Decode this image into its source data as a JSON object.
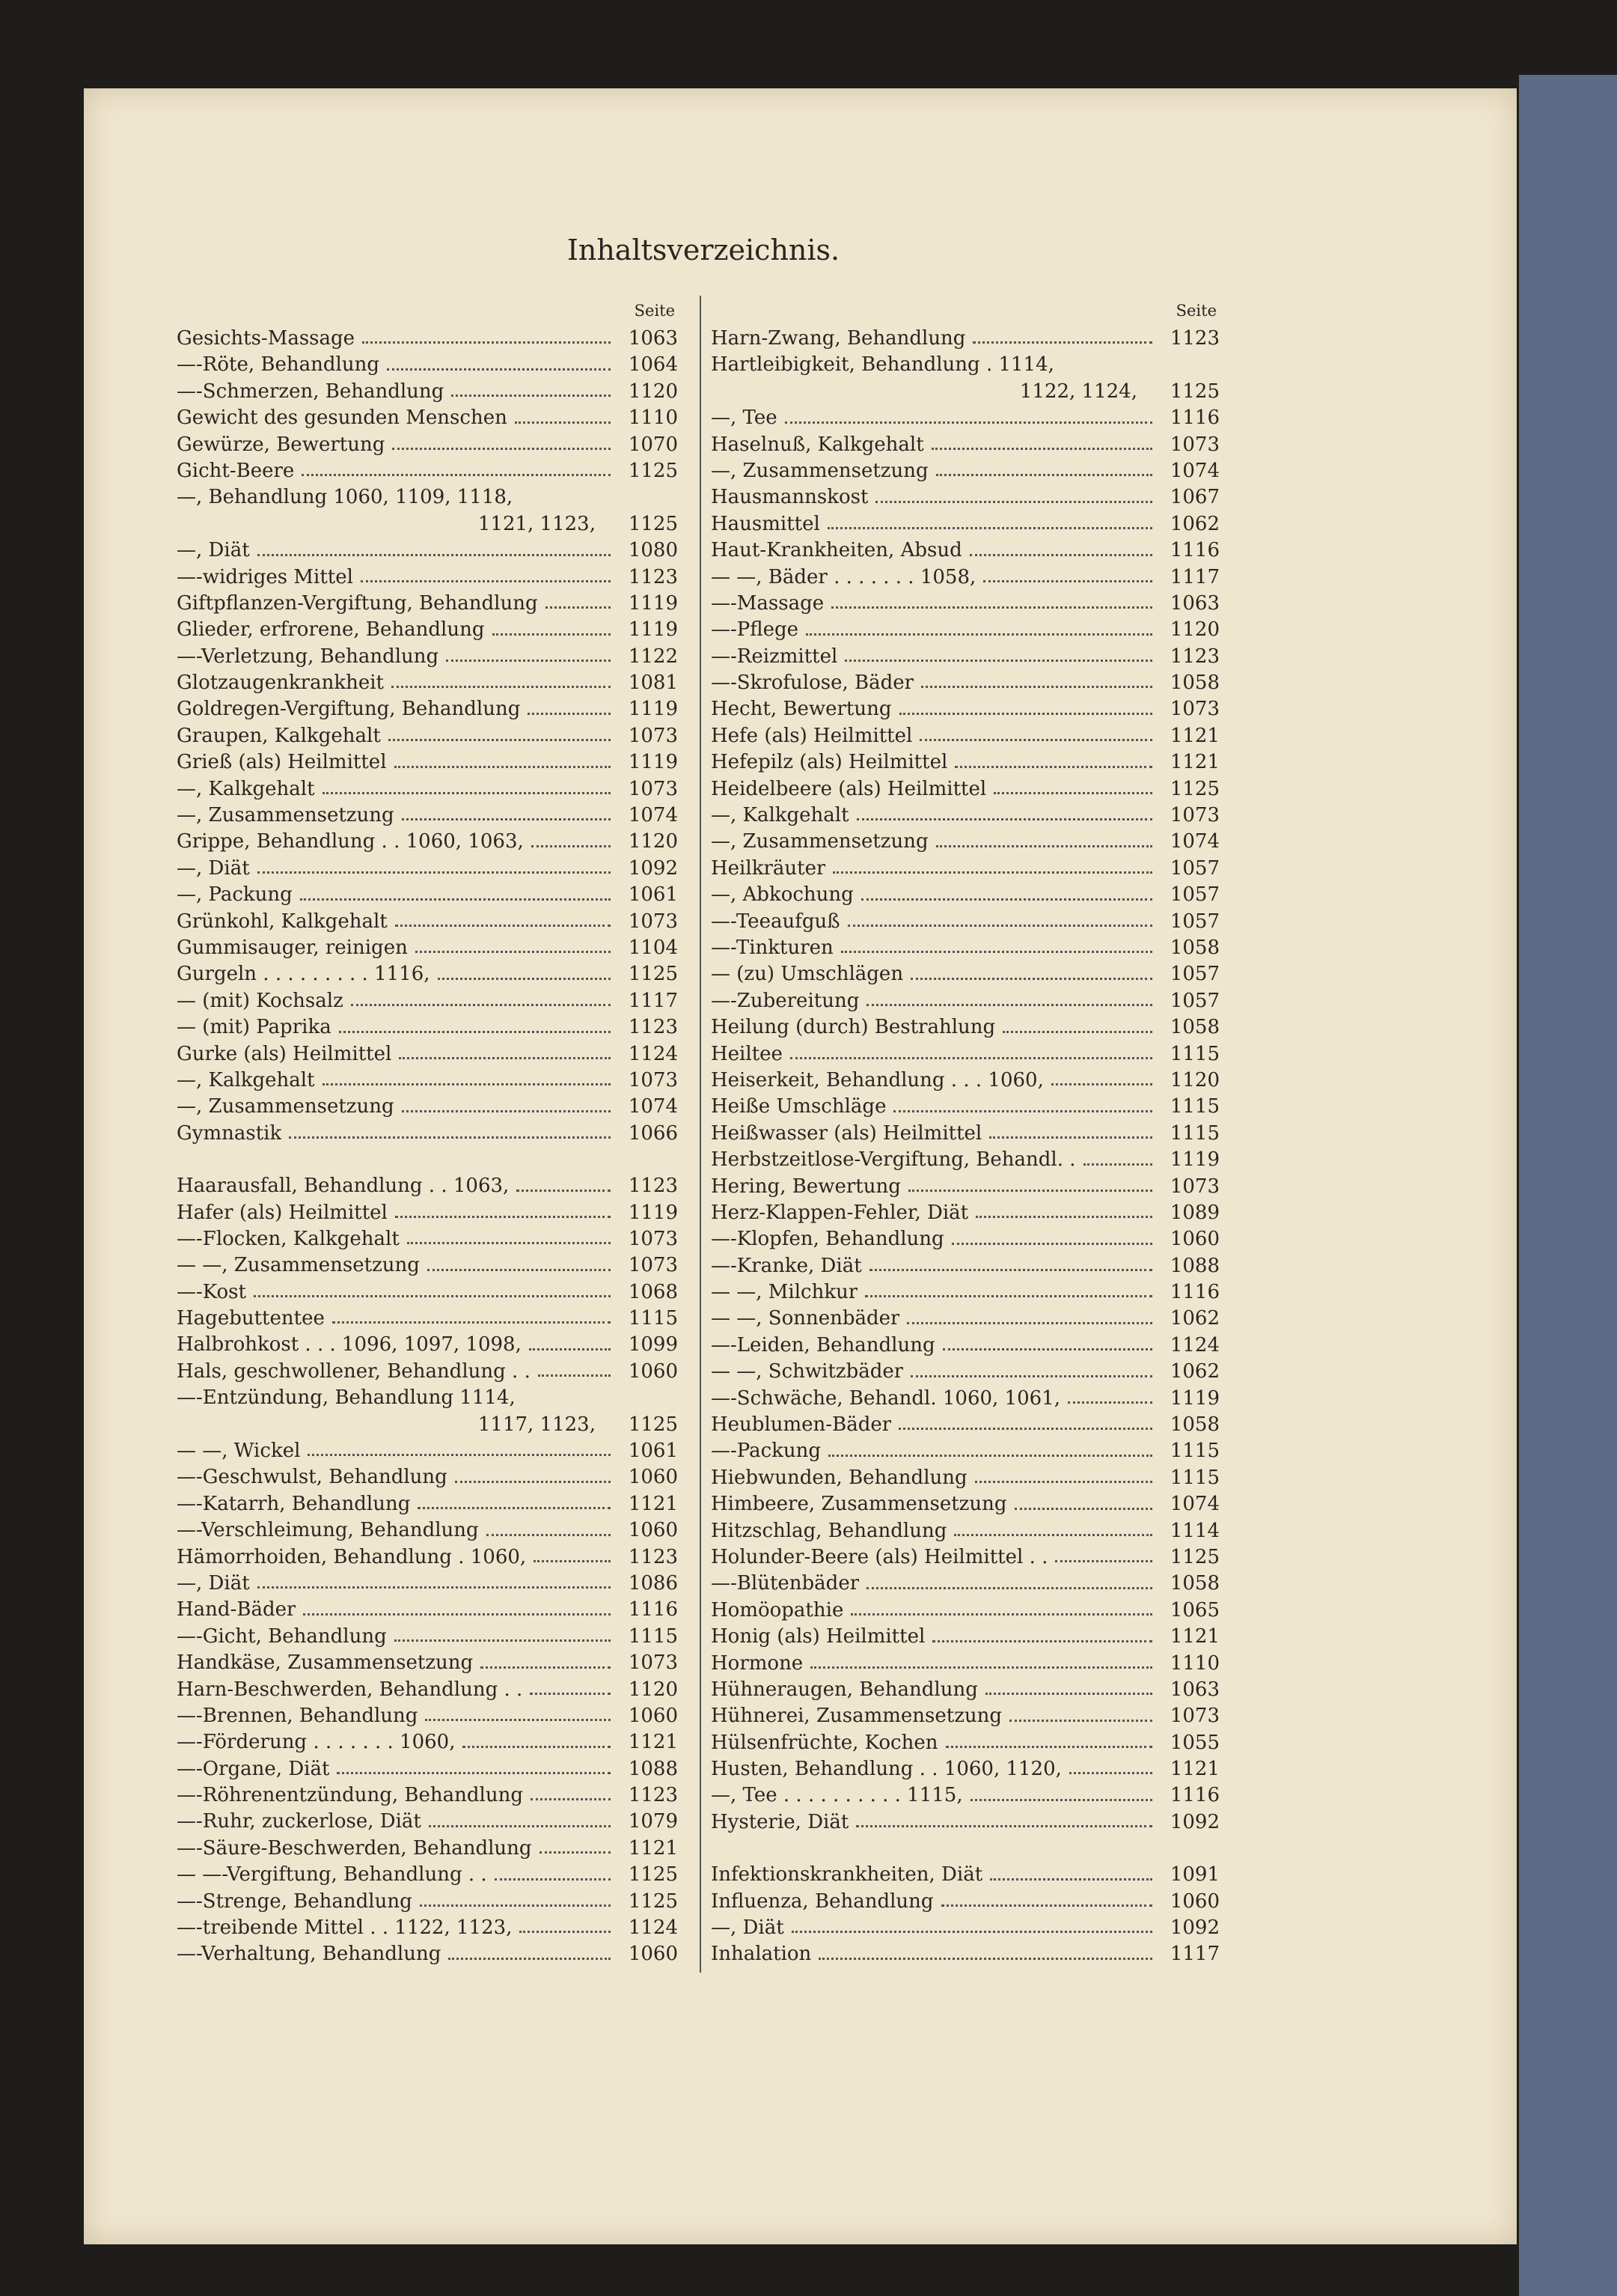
{
  "header": {
    "title": "Inhaltsverzeichnis."
  },
  "columns": [
    {
      "page_label": "Seite",
      "groups": [
        {
          "entries": [
            {
              "text": "Gesichts-Massage",
              "page": "1063"
            },
            {
              "text": "—-Röte, Behandlung",
              "page": "1064"
            },
            {
              "text": "—-Schmerzen, Behandlung",
              "page": "1120"
            },
            {
              "text": "Gewicht des gesunden Menschen",
              "page": "1110"
            },
            {
              "text": "Gewürze, Bewertung",
              "page": "1070"
            },
            {
              "text": "Gicht-Beere",
              "page": "1125"
            },
            {
              "text": "—, Behandlung 1060, 1109, 1118,"
            },
            {
              "text": "1121, 1123,",
              "page": "1125"
            },
            {
              "text": "—, Diät",
              "page": "1080"
            },
            {
              "text": "—-widriges Mittel",
              "page": "1123"
            },
            {
              "text": "Giftpflanzen-Vergiftung, Behandlung",
              "page": "1119"
            },
            {
              "text": "Glieder, erfrorene, Behandlung",
              "page": "1119"
            },
            {
              "text": "—-Verletzung, Behandlung",
              "page": "1122"
            },
            {
              "text": "Glotzaugenkrankheit",
              "page": "1081"
            },
            {
              "text": "Goldregen-Vergiftung, Behandlung",
              "page": "1119"
            },
            {
              "text": "Graupen, Kalkgehalt",
              "page": "1073"
            },
            {
              "text": "Grieß (als) Heilmittel",
              "page": "1119"
            },
            {
              "text": "—, Kalkgehalt",
              "page": "1073"
            },
            {
              "text": "—, Zusammensetzung",
              "page": "1074"
            },
            {
              "text": "Grippe, Behandlung . . 1060, 1063,",
              "page": "1120"
            },
            {
              "text": "—, Diät",
              "page": "1092"
            },
            {
              "text": "—, Packung",
              "page": "1061"
            },
            {
              "text": "Grünkohl, Kalkgehalt",
              "page": "1073"
            },
            {
              "text": "Gummisauger, reinigen",
              "page": "1104"
            },
            {
              "text": "Gurgeln . . . . . . . . . 1116,",
              "page": "1125"
            },
            {
              "text": "— (mit) Kochsalz",
              "page": "1117"
            },
            {
              "text": "— (mit) Paprika",
              "page": "1123"
            },
            {
              "text": "Gurke (als) Heilmittel",
              "page": "1124"
            },
            {
              "text": "—, Kalkgehalt",
              "page": "1073"
            },
            {
              "text": "—, Zusammensetzung",
              "page": "1074"
            },
            {
              "text": "Gymnastik",
              "page": "1066"
            }
          ]
        },
        {
          "entries": [
            {
              "text": "Haarausfall, Behandlung . . 1063,",
              "page": "1123"
            },
            {
              "text": "Hafer (als) Heilmittel",
              "page": "1119"
            },
            {
              "text": "—-Flocken, Kalkgehalt",
              "page": "1073"
            },
            {
              "text": "— —, Zusammensetzung",
              "page": "1073"
            },
            {
              "text": "—-Kost",
              "page": "1068"
            },
            {
              "text": "Hagebuttentee",
              "page": "1115"
            },
            {
              "text": "Halbrohkost . . . 1096, 1097, 1098,",
              "page": "1099"
            },
            {
              "text": "Hals, geschwollener, Behandlung . .",
              "page": "1060"
            },
            {
              "text": "—-Entzündung, Behandlung 1114,"
            },
            {
              "text": "1117, 1123,",
              "page": "1125"
            },
            {
              "text": "— —, Wickel",
              "page": "1061"
            },
            {
              "text": "—-Geschwulst, Behandlung",
              "page": "1060"
            },
            {
              "text": "—-Katarrh, Behandlung",
              "page": "1121"
            },
            {
              "text": "—-Verschleimung, Behandlung",
              "page": "1060"
            },
            {
              "text": "Hämorrhoiden, Behandlung . 1060,",
              "page": "1123"
            },
            {
              "text": "—, Diät",
              "page": "1086"
            },
            {
              "text": "Hand-Bäder",
              "page": "1116"
            },
            {
              "text": "—-Gicht, Behandlung",
              "page": "1115"
            },
            {
              "text": "Handkäse, Zusammensetzung",
              "page": "1073"
            },
            {
              "text": "Harn-Beschwerden, Behandlung . .",
              "page": "1120"
            },
            {
              "text": "—-Brennen, Behandlung",
              "page": "1060"
            },
            {
              "text": "—-Förderung . . . . . . . 1060,",
              "page": "1121"
            },
            {
              "text": "—-Organe, Diät",
              "page": "1088"
            },
            {
              "text": "—-Röhrenentzündung, Behandlung",
              "page": "1123"
            },
            {
              "text": "—-Ruhr, zuckerlose, Diät",
              "page": "1079"
            },
            {
              "text": "—-Säure-Beschwerden, Behandlung",
              "page": "1121"
            },
            {
              "text": "— —-Vergiftung, Behandlung . .",
              "page": "1125"
            },
            {
              "text": "—-Strenge, Behandlung",
              "page": "1125"
            },
            {
              "text": "—-treibende Mittel . . 1122, 1123,",
              "page": "1124"
            },
            {
              "text": "—-Verhaltung, Behandlung",
              "page": "1060"
            }
          ]
        }
      ]
    },
    {
      "page_label": "Seite",
      "groups": [
        {
          "entries": [
            {
              "text": "Harn-Zwang, Behandlung",
              "page": "1123"
            },
            {
              "text": "Hartleibigkeit, Behandlung . 1114,"
            },
            {
              "text": "1122, 1124,",
              "page": "1125"
            },
            {
              "text": "—, Tee",
              "page": "1116"
            },
            {
              "text": "Haselnuß, Kalkgehalt",
              "page": "1073"
            },
            {
              "text": "—, Zusammensetzung",
              "page": "1074"
            },
            {
              "text": "Hausmannskost",
              "page": "1067"
            },
            {
              "text": "Hausmittel",
              "page": "1062"
            },
            {
              "text": "Haut-Krankheiten, Absud",
              "page": "1116"
            },
            {
              "text": "— —, Bäder . . . . . . . 1058,",
              "page": "1117"
            },
            {
              "text": "—-Massage",
              "page": "1063"
            },
            {
              "text": "—-Pflege",
              "page": "1120"
            },
            {
              "text": "—-Reizmittel",
              "page": "1123"
            },
            {
              "text": "—-Skrofulose, Bäder",
              "page": "1058"
            },
            {
              "text": "Hecht, Bewertung",
              "page": "1073"
            },
            {
              "text": "Hefe (als) Heilmittel",
              "page": "1121"
            },
            {
              "text": "Hefepilz (als) Heilmittel",
              "page": "1121"
            },
            {
              "text": "Heidelbeere (als) Heilmittel",
              "page": "1125"
            },
            {
              "text": "—, Kalkgehalt",
              "page": "1073"
            },
            {
              "text": "—, Zusammensetzung",
              "page": "1074"
            },
            {
              "text": "Heilkräuter",
              "page": "1057"
            },
            {
              "text": "—, Abkochung",
              "page": "1057"
            },
            {
              "text": "—-Teeaufguß",
              "page": "1057"
            },
            {
              "text": "—-Tinkturen",
              "page": "1058"
            },
            {
              "text": "— (zu) Umschlägen",
              "page": "1057"
            },
            {
              "text": "—-Zubereitung",
              "page": "1057"
            },
            {
              "text": "Heilung (durch) Bestrahlung",
              "page": "1058"
            },
            {
              "text": "Heiltee",
              "page": "1115"
            },
            {
              "text": "Heiserkeit, Behandlung . . . 1060,",
              "page": "1120"
            },
            {
              "text": "Heiße Umschläge",
              "page": "1115"
            },
            {
              "text": "Heißwasser (als) Heilmittel",
              "page": "1115"
            },
            {
              "text": "Herbstzeitlose-Vergiftung, Behandl. .",
              "page": "1119"
            },
            {
              "text": "Hering, Bewertung",
              "page": "1073"
            },
            {
              "text": "Herz-Klappen-Fehler, Diät",
              "page": "1089"
            },
            {
              "text": "—-Klopfen, Behandlung",
              "page": "1060"
            },
            {
              "text": "—-Kranke, Diät",
              "page": "1088"
            },
            {
              "text": "— —, Milchkur",
              "page": "1116"
            },
            {
              "text": "— —, Sonnenbäder",
              "page": "1062"
            },
            {
              "text": "—-Leiden, Behandlung",
              "page": "1124"
            },
            {
              "text": "— —, Schwitzbäder",
              "page": "1062"
            },
            {
              "text": "—-Schwäche, Behandl. 1060, 1061,",
              "page": "1119"
            },
            {
              "text": "Heublumen-Bäder",
              "page": "1058"
            },
            {
              "text": "—-Packung",
              "page": "1115"
            },
            {
              "text": "Hiebwunden, Behandlung",
              "page": "1115"
            },
            {
              "text": "Himbeere, Zusammensetzung",
              "page": "1074"
            },
            {
              "text": "Hitzschlag, Behandlung",
              "page": "1114"
            },
            {
              "text": "Holunder-Beere (als) Heilmittel . .",
              "page": "1125"
            },
            {
              "text": "—-Blütenbäder",
              "page": "1058"
            },
            {
              "text": "Homöopathie",
              "page": "1065"
            },
            {
              "text": "Honig (als) Heilmittel",
              "page": "1121"
            },
            {
              "text": "Hormone",
              "page": "1110"
            },
            {
              "text": "Hühneraugen, Behandlung",
              "page": "1063"
            },
            {
              "text": "Hühnerei, Zusammensetzung",
              "page": "1073"
            },
            {
              "text": "Hülsenfrüchte, Kochen",
              "page": "1055"
            },
            {
              "text": "Husten, Behandlung . . 1060, 1120,",
              "page": "1121"
            },
            {
              "text": "—, Tee . . . . . . . . . . 1115,",
              "page": "1116"
            },
            {
              "text": "Hysterie, Diät",
              "page": "1092"
            }
          ]
        },
        {
          "entries": [
            {
              "text": "Infektionskrankheiten, Diät",
              "page": "1091"
            },
            {
              "text": "Influenza, Behandlung",
              "page": "1060"
            },
            {
              "text": "—, Diät",
              "page": "1092"
            },
            {
              "text": "Inhalation",
              "page": "1117"
            }
          ]
        }
      ]
    }
  ]
}
